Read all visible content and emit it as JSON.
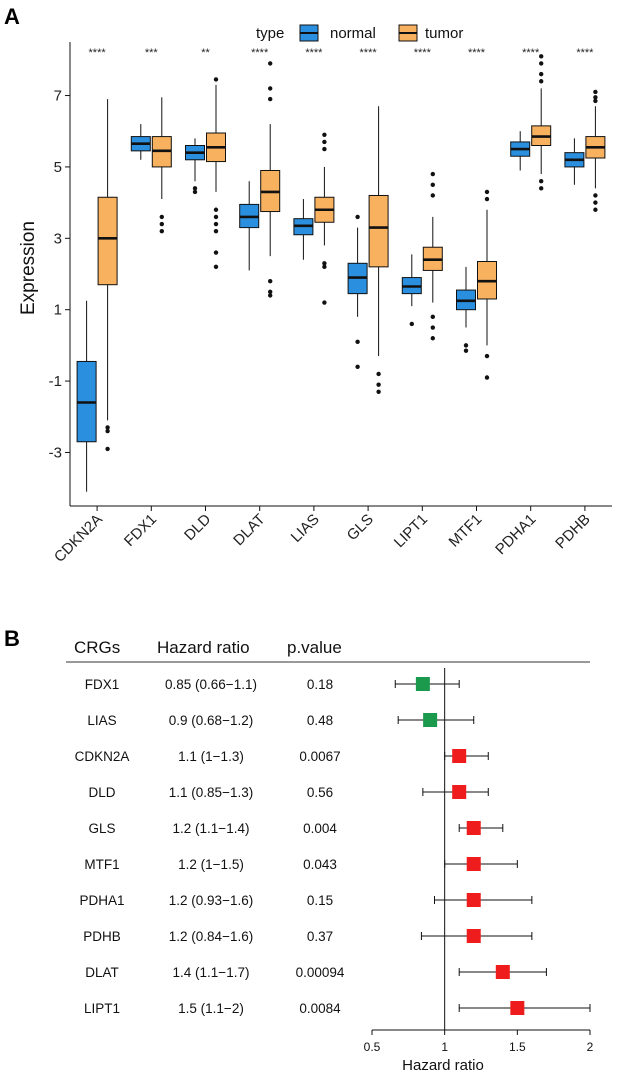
{
  "panelA": {
    "label": "A",
    "legend": {
      "title": "type",
      "entries": [
        {
          "name": "normal",
          "color": "#2b8fe0"
        },
        {
          "name": "tumor",
          "color": "#f7b15f"
        }
      ]
    },
    "ylabel": "Expression",
    "yticks": [
      "7",
      "5",
      "3",
      "1",
      "-1",
      "-3"
    ]
  },
  "panelB": {
    "label": "B",
    "headers": {
      "gene": "CRGs",
      "hr": "Hazard ratio",
      "p": "p.value"
    },
    "rows": [
      {
        "gene": "FDX1",
        "hr": "0.85 (0.66−1.1)",
        "p": "0.18"
      },
      {
        "gene": "LIAS",
        "hr": "0.9 (0.68−1.2)",
        "p": "0.48"
      },
      {
        "gene": "CDKN2A",
        "hr": "1.1 (1−1.3)",
        "p": "0.0067"
      },
      {
        "gene": "DLD",
        "hr": "1.1 (0.85−1.3)",
        "p": "0.56"
      },
      {
        "gene": "GLS",
        "hr": "1.2 (1.1−1.4)",
        "p": "0.004"
      },
      {
        "gene": "MTF1",
        "hr": "1.2 (1−1.5)",
        "p": "0.043"
      },
      {
        "gene": "PDHA1",
        "hr": "1.2 (0.93−1.6)",
        "p": "0.15"
      },
      {
        "gene": "PDHB",
        "hr": "1.2 (0.84−1.6)",
        "p": "0.37"
      },
      {
        "gene": "DLAT",
        "hr": "1.4 (1.1−1.7)",
        "p": "0.00094"
      },
      {
        "gene": "LIPT1",
        "hr": "1.5 (1.1−2)",
        "p": "0.0084"
      }
    ],
    "xticks": [
      "0.5",
      "1",
      "1.5",
      "2"
    ],
    "xlabel": "Hazard ratio"
  },
  "chart_data": [
    {
      "type": "box",
      "title": "",
      "xlabel": "",
      "ylabel": "Expression",
      "ylim": [
        -4.5,
        8.5
      ],
      "yticks": [
        -3,
        -1,
        1,
        3,
        5,
        7
      ],
      "legend_position": "top",
      "categories": [
        "CDKN2A",
        "FDX1",
        "DLD",
        "DLAT",
        "LIAS",
        "GLS",
        "LIPT1",
        "MTF1",
        "PDHA1",
        "PDHB"
      ],
      "significance": [
        "****",
        "***",
        "**",
        "****",
        "****",
        "****",
        "****",
        "****",
        "****",
        "****"
      ],
      "series": [
        {
          "name": "normal",
          "color": "#2b8fe0",
          "boxes": [
            {
              "min": -4.1,
              "q1": -2.7,
              "median": -1.6,
              "q3": -0.45,
              "max": 1.25,
              "outliers": []
            },
            {
              "min": 5.2,
              "q1": 5.45,
              "median": 5.65,
              "q3": 5.85,
              "max": 6.2,
              "outliers": []
            },
            {
              "min": 4.6,
              "q1": 5.2,
              "median": 5.4,
              "q3": 5.6,
              "max": 5.8,
              "outliers": [
                4.4,
                4.3
              ]
            },
            {
              "min": 2.1,
              "q1": 3.3,
              "median": 3.6,
              "q3": 3.95,
              "max": 4.6,
              "outliers": []
            },
            {
              "min": 2.4,
              "q1": 3.1,
              "median": 3.35,
              "q3": 3.55,
              "max": 4.1,
              "outliers": []
            },
            {
              "min": 0.8,
              "q1": 1.45,
              "median": 1.9,
              "q3": 2.3,
              "max": 3.3,
              "outliers": [
                0.1,
                -0.6,
                3.6
              ]
            },
            {
              "min": 1.1,
              "q1": 1.45,
              "median": 1.65,
              "q3": 1.9,
              "max": 2.55,
              "outliers": [
                0.6
              ]
            },
            {
              "min": 0.5,
              "q1": 1.0,
              "median": 1.25,
              "q3": 1.55,
              "max": 2.2,
              "outliers": [
                0.0,
                -0.15
              ]
            },
            {
              "min": 4.9,
              "q1": 5.3,
              "median": 5.5,
              "q3": 5.7,
              "max": 6.0,
              "outliers": []
            },
            {
              "min": 4.5,
              "q1": 5.0,
              "median": 5.2,
              "q3": 5.4,
              "max": 5.8,
              "outliers": []
            }
          ]
        },
        {
          "name": "tumor",
          "color": "#f7b15f",
          "boxes": [
            {
              "min": -2.1,
              "q1": 1.7,
              "median": 3.0,
              "q3": 4.15,
              "max": 6.9,
              "outliers": [
                -2.3,
                -2.4,
                -2.9
              ]
            },
            {
              "min": 4.1,
              "q1": 5.0,
              "median": 5.45,
              "q3": 5.85,
              "max": 6.95,
              "outliers": [
                3.6,
                3.4,
                3.2
              ]
            },
            {
              "min": 4.3,
              "q1": 5.15,
              "median": 5.55,
              "q3": 5.95,
              "max": 7.3,
              "outliers": [
                7.45,
                3.8,
                3.6,
                3.4,
                3.2,
                2.6,
                2.2
              ]
            },
            {
              "min": 2.5,
              "q1": 3.75,
              "median": 4.3,
              "q3": 4.9,
              "max": 6.2,
              "outliers": [
                7.9,
                7.2,
                6.9,
                1.8,
                1.5,
                1.4
              ]
            },
            {
              "min": 2.8,
              "q1": 3.45,
              "median": 3.8,
              "q3": 4.15,
              "max": 5.0,
              "outliers": [
                5.9,
                5.7,
                5.5,
                2.3,
                2.2,
                1.2
              ]
            },
            {
              "min": -0.3,
              "q1": 2.2,
              "median": 3.3,
              "q3": 4.2,
              "max": 6.7,
              "outliers": [
                -0.8,
                -1.1,
                -1.3
              ]
            },
            {
              "min": 1.2,
              "q1": 2.1,
              "median": 2.4,
              "q3": 2.75,
              "max": 3.6,
              "outliers": [
                4.8,
                4.5,
                4.2,
                0.8,
                0.5,
                0.2
              ]
            },
            {
              "min": 0.0,
              "q1": 1.3,
              "median": 1.8,
              "q3": 2.35,
              "max": 3.8,
              "outliers": [
                4.3,
                4.1,
                -0.3,
                -0.9
              ]
            },
            {
              "min": 4.8,
              "q1": 5.6,
              "median": 5.85,
              "q3": 6.15,
              "max": 7.2,
              "outliers": [
                8.1,
                7.9,
                7.6,
                7.4,
                4.6,
                4.4
              ]
            },
            {
              "min": 4.4,
              "q1": 5.25,
              "median": 5.55,
              "q3": 5.85,
              "max": 6.7,
              "outliers": [
                7.1,
                6.95,
                6.85,
                4.2,
                4.0,
                3.8
              ]
            }
          ]
        }
      ]
    },
    {
      "type": "forest",
      "title": "",
      "xlabel": "Hazard ratio",
      "xlim": [
        0.5,
        2.0
      ],
      "reference_line": 1,
      "categories": [
        "FDX1",
        "LIAS",
        "CDKN2A",
        "DLD",
        "GLS",
        "MTF1",
        "PDHA1",
        "PDHB",
        "DLAT",
        "LIPT1"
      ],
      "hr": [
        0.85,
        0.9,
        1.1,
        1.1,
        1.2,
        1.2,
        1.2,
        1.2,
        1.4,
        1.5
      ],
      "lower": [
        0.66,
        0.68,
        1.0,
        0.85,
        1.1,
        1.0,
        0.93,
        0.84,
        1.1,
        1.1
      ],
      "upper": [
        1.1,
        1.2,
        1.3,
        1.3,
        1.4,
        1.5,
        1.6,
        1.6,
        1.7,
        2.0
      ],
      "colors": [
        "#1b9a4e",
        "#1b9a4e",
        "#ee1c1c",
        "#ee1c1c",
        "#ee1c1c",
        "#ee1c1c",
        "#ee1c1c",
        "#ee1c1c",
        "#ee1c1c",
        "#ee1c1c"
      ]
    }
  ]
}
